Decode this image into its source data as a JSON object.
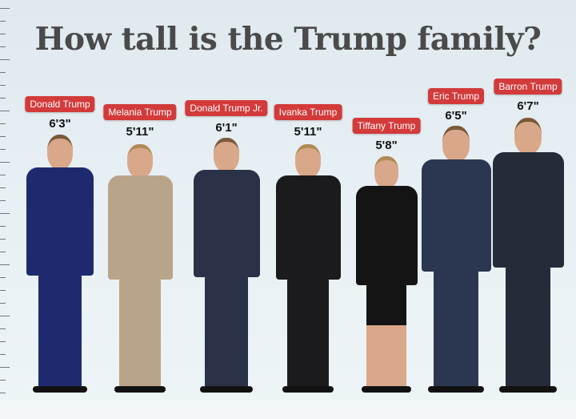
{
  "title": "How tall is the Trump family?",
  "people": [
    {
      "name": "Donald Trump",
      "height": "6'3\"",
      "outfit_color": "#1f2a6e"
    },
    {
      "name": "Melania Trump",
      "height": "5'11\"",
      "outfit_color": "#b9a48a"
    },
    {
      "name": "Donald Trump Jr.",
      "height": "6'1\"",
      "outfit_color": "#2a3247"
    },
    {
      "name": "Ivanka Trump",
      "height": "5'11\"",
      "outfit_color": "#1b1b1d"
    },
    {
      "name": "Tiffany Trump",
      "height": "5'8\"",
      "outfit_color": "#141414"
    },
    {
      "name": "Eric Trump",
      "height": "6'5\"",
      "outfit_color": "#2b3750"
    },
    {
      "name": "Barron Trump",
      "height": "6'7\"",
      "outfit_color": "#252b38"
    }
  ],
  "label_color": "#d33a3a"
}
